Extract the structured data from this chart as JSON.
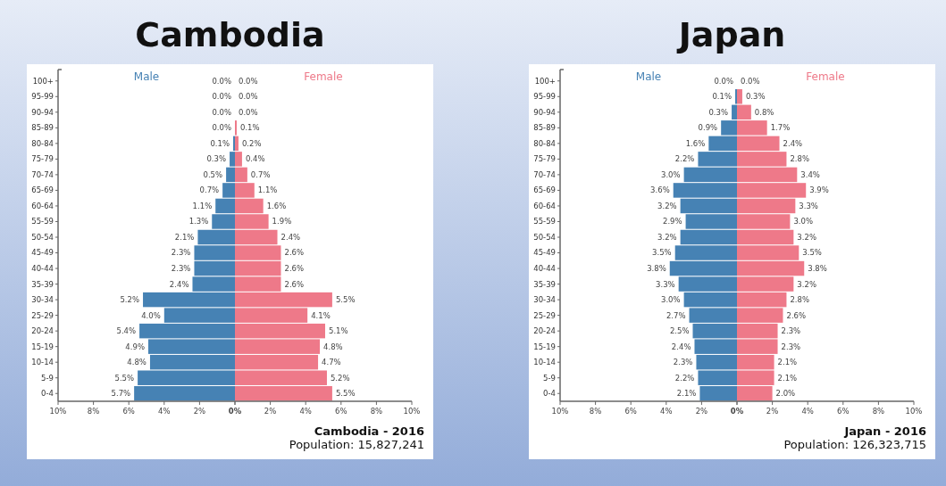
{
  "chart_data": [
    {
      "type": "bar",
      "orientation": "horizontal",
      "title": "Cambodia",
      "legend": false,
      "grid": false,
      "categories": [
        "100+",
        "95-99",
        "90-94",
        "85-89",
        "80-84",
        "75-79",
        "70-74",
        "65-69",
        "60-64",
        "55-59",
        "50-54",
        "45-49",
        "40-44",
        "35-39",
        "30-34",
        "25-29",
        "20-24",
        "15-19",
        "10-14",
        "5-9",
        "0-4"
      ],
      "xlim": [
        10,
        0
      ],
      "xticks": [
        {
          "value": 10,
          "label": "10%"
        },
        {
          "value": 8,
          "label": "8%"
        },
        {
          "value": 6,
          "label": "6%"
        },
        {
          "value": 4,
          "label": "4%"
        },
        {
          "value": 2,
          "label": "2%"
        },
        {
          "value": 0,
          "label": "0%"
        }
      ],
      "series": [
        {
          "name": "Male",
          "color": "#4682b4",
          "values": [
            0.0,
            0.0,
            0.0,
            0.0,
            0.1,
            0.3,
            0.5,
            0.7,
            1.1,
            1.3,
            2.1,
            2.3,
            2.3,
            2.4,
            5.2,
            4.0,
            5.4,
            4.9,
            4.8,
            5.5,
            5.7
          ],
          "value_labels": [
            "0.0%",
            "0.0%",
            "0.0%",
            "0.0%",
            "0.1%",
            "0.3%",
            "0.5%",
            "0.7%",
            "1.1%",
            "1.3%",
            "2.1%",
            "2.3%",
            "2.3%",
            "2.4%",
            "5.2%",
            "4.0%",
            "5.4%",
            "4.9%",
            "4.8%",
            "5.5%",
            "5.7%"
          ]
        }
      ]
    },
    {
      "type": "bar",
      "orientation": "horizontal",
      "legend": false,
      "grid": false,
      "tick_labels": "x",
      "categories": [
        "100+",
        "95-99",
        "90-94",
        "85-89",
        "80-84",
        "75-79",
        "70-74",
        "65-69",
        "60-64",
        "55-59",
        "50-54",
        "45-49",
        "40-44",
        "35-39",
        "30-34",
        "25-29",
        "20-24",
        "15-19",
        "10-14",
        "5-9",
        "0-4"
      ],
      "xlim": [
        0,
        10
      ],
      "xticks": [
        {
          "value": 0,
          "label": null
        },
        {
          "value": 2,
          "label": "2%"
        },
        {
          "value": 4,
          "label": "4%"
        },
        {
          "value": 6,
          "label": "6%"
        },
        {
          "value": 8,
          "label": "8%"
        },
        {
          "value": 10,
          "label": "10%"
        }
      ],
      "series": [
        {
          "name": "Female",
          "color": "#ee7989",
          "values": [
            0.0,
            0.0,
            0.0,
            0.1,
            0.2,
            0.4,
            0.7,
            1.1,
            1.6,
            1.9,
            2.4,
            2.6,
            2.6,
            2.6,
            5.5,
            4.1,
            5.1,
            4.8,
            4.7,
            5.2,
            5.5
          ],
          "value_labels": [
            "0.0%",
            "0.0%",
            "0.0%",
            "0.1%",
            "0.2%",
            "0.4%",
            "0.7%",
            "1.1%",
            "1.6%",
            "1.9%",
            "2.4%",
            "2.6%",
            "2.6%",
            "2.6%",
            "5.5%",
            "4.1%",
            "5.1%",
            "4.8%",
            "4.7%",
            "5.2%",
            "5.5%"
          ]
        }
      ],
      "annotations": [
        "Cambodia - 2016",
        "Population: 15,827,241"
      ]
    },
    {
      "type": "bar",
      "orientation": "horizontal",
      "title": "Japan",
      "legend": false,
      "grid": false,
      "categories": [
        "100+",
        "95-99",
        "90-94",
        "85-89",
        "80-84",
        "75-79",
        "70-74",
        "65-69",
        "60-64",
        "55-59",
        "50-54",
        "45-49",
        "40-44",
        "35-39",
        "30-34",
        "25-29",
        "20-24",
        "15-19",
        "10-14",
        "5-9",
        "0-4"
      ],
      "xlim": [
        10,
        0
      ],
      "xticks": [
        {
          "value": 10,
          "label": "10%"
        },
        {
          "value": 8,
          "label": "8%"
        },
        {
          "value": 6,
          "label": "6%"
        },
        {
          "value": 4,
          "label": "4%"
        },
        {
          "value": 2,
          "label": "2%"
        },
        {
          "value": 0,
          "label": "0%"
        }
      ],
      "series": [
        {
          "name": "Male",
          "color": "#4682b4",
          "values": [
            0.0,
            0.1,
            0.3,
            0.9,
            1.6,
            2.2,
            3.0,
            3.6,
            3.2,
            2.9,
            3.2,
            3.5,
            3.8,
            3.3,
            3.0,
            2.7,
            2.5,
            2.4,
            2.3,
            2.2,
            2.1
          ],
          "value_labels": [
            "0.0%",
            "0.1%",
            "0.3%",
            "0.9%",
            "1.6%",
            "2.2%",
            "3.0%",
            "3.6%",
            "3.2%",
            "2.9%",
            "3.2%",
            "3.5%",
            "3.8%",
            "3.3%",
            "3.0%",
            "2.7%",
            "2.5%",
            "2.4%",
            "2.3%",
            "2.2%",
            "2.1%"
          ]
        }
      ]
    },
    {
      "type": "bar",
      "orientation": "horizontal",
      "legend": false,
      "grid": false,
      "tick_labels": "x",
      "categories": [
        "100+",
        "95-99",
        "90-94",
        "85-89",
        "80-84",
        "75-79",
        "70-74",
        "65-69",
        "60-64",
        "55-59",
        "50-54",
        "45-49",
        "40-44",
        "35-39",
        "30-34",
        "25-29",
        "20-24",
        "15-19",
        "10-14",
        "5-9",
        "0-4"
      ],
      "xlim": [
        0,
        10
      ],
      "xticks": [
        {
          "value": 0,
          "label": null
        },
        {
          "value": 2,
          "label": "2%"
        },
        {
          "value": 4,
          "label": "4%"
        },
        {
          "value": 6,
          "label": "6%"
        },
        {
          "value": 8,
          "label": "8%"
        },
        {
          "value": 10,
          "label": "10%"
        }
      ],
      "series": [
        {
          "name": "Female",
          "color": "#ee7989",
          "values": [
            0.0,
            0.3,
            0.8,
            1.7,
            2.4,
            2.8,
            3.4,
            3.9,
            3.3,
            3.0,
            3.2,
            3.5,
            3.8,
            3.2,
            2.8,
            2.6,
            2.3,
            2.3,
            2.1,
            2.1,
            2.0
          ],
          "value_labels": [
            "0.0%",
            "0.3%",
            "0.8%",
            "1.7%",
            "2.4%",
            "2.8%",
            "3.4%",
            "3.9%",
            "3.3%",
            "3.0%",
            "3.2%",
            "3.5%",
            "3.8%",
            "3.2%",
            "2.8%",
            "2.6%",
            "2.3%",
            "2.3%",
            "2.1%",
            "2.1%",
            "2.0%"
          ]
        }
      ],
      "annotations": [
        "Japan - 2016",
        "Population: 126,323,715"
      ]
    }
  ]
}
